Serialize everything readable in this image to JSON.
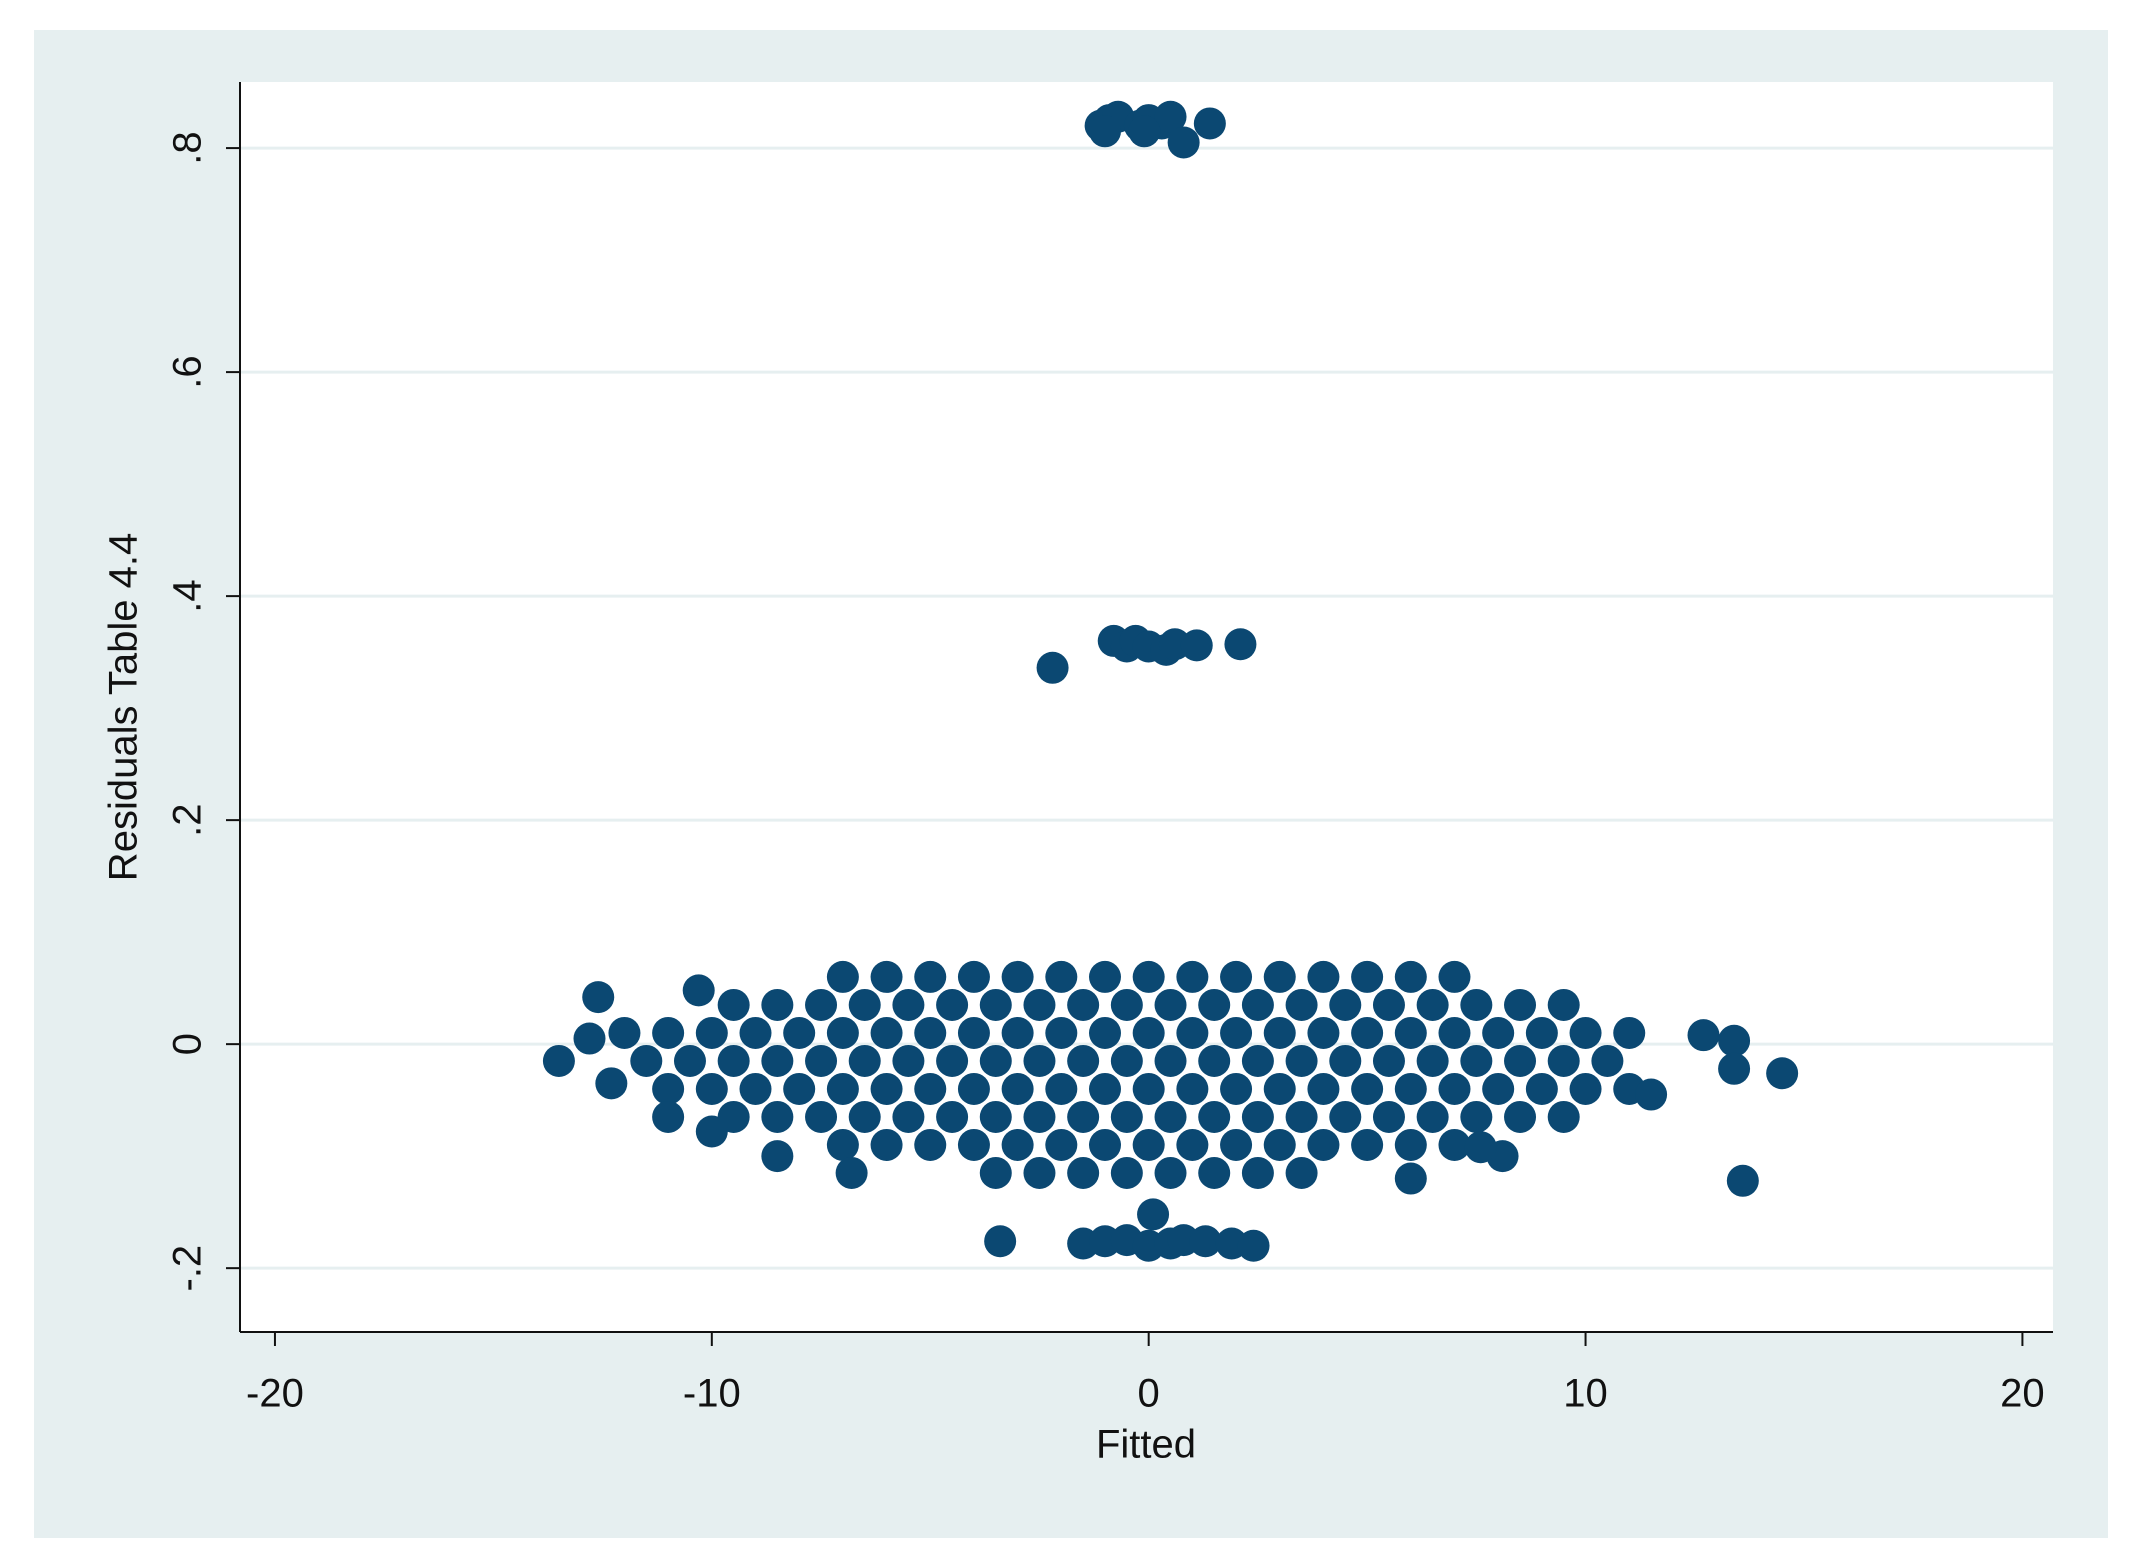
{
  "chart_data": {
    "type": "scatter",
    "xlabel": "Fitted",
    "ylabel": "Residuals Table 4.4",
    "color": "#0b4872",
    "grid": true,
    "xlim": [
      -20.8,
      20.7
    ],
    "ylim": [
      -0.257,
      0.859
    ],
    "xticks": [
      -20,
      -10,
      0,
      10,
      20
    ],
    "yticks": [
      {
        "value": -0.2,
        "label": "-.2"
      },
      0,
      {
        "value": 0.2,
        "label": ".2"
      },
      {
        "value": 0.4,
        "label": ".4"
      },
      {
        "value": 0.6,
        "label": ".6"
      },
      {
        "value": 0.8,
        "label": ".8"
      }
    ],
    "x": [
      -7,
      -6,
      -5,
      -4,
      -3,
      -2,
      -1,
      0,
      1,
      2,
      3,
      4,
      5,
      6,
      7,
      -9.5,
      -8.5,
      -7.5,
      -6.5,
      -5.5,
      -4.5,
      -3.5,
      -2.5,
      -1.5,
      -0.5,
      0.5,
      1.5,
      2.5,
      3.5,
      4.5,
      5.5,
      6.5,
      7.5,
      8.5,
      9.5,
      -12,
      -11,
      -10,
      -9,
      -8,
      -7,
      -6,
      -5,
      -4,
      -3,
      -2,
      -1,
      0,
      1,
      2,
      3,
      4,
      5,
      6,
      7,
      8,
      9,
      10,
      11,
      -11.5,
      -10.5,
      -9.5,
      -8.5,
      -7.5,
      -6.5,
      -5.5,
      -4.5,
      -3.5,
      -2.5,
      -1.5,
      -0.5,
      0.5,
      1.5,
      2.5,
      3.5,
      4.5,
      5.5,
      6.5,
      7.5,
      8.5,
      9.5,
      10.5,
      -11,
      -10,
      -9,
      -8,
      -7,
      -6,
      -5,
      -4,
      -3,
      -2,
      -1,
      0,
      1,
      2,
      3,
      4,
      5,
      6,
      7,
      8,
      9,
      10,
      11,
      -9.5,
      -8.5,
      -7.5,
      -6.5,
      -5.5,
      -4.5,
      -3.5,
      -2.5,
      -1.5,
      -0.5,
      0.5,
      1.5,
      2.5,
      3.5,
      4.5,
      5.5,
      6.5,
      7.5,
      8.5,
      9.5,
      -7,
      -6,
      -5,
      -4,
      -3,
      -2,
      -1,
      0,
      1,
      2,
      3,
      4,
      5,
      6,
      7,
      -3.5,
      -2.5,
      -1.5,
      -0.5,
      0.5,
      1.5,
      2.5,
      3.5,
      -1.1,
      -0.9,
      -0.7,
      -0.2,
      0,
      0.3,
      0.5,
      0.8,
      1.4,
      -1,
      -0.1,
      -0.8,
      -0.5,
      -0.3,
      0,
      0.4,
      0.6,
      1.1,
      2.1,
      -2.2,
      -3.4,
      -1.5,
      -1,
      -0.5,
      0,
      0.5,
      0.8,
      1.3,
      1.9,
      2.4,
      0.1,
      -13.5,
      -12.6,
      -12.8,
      -12.3,
      13.4,
      12.7,
      14.5,
      13.6,
      13.4,
      11.5,
      8.1,
      7.6,
      -10,
      -8.5,
      -6.8,
      6,
      -10.3,
      -11
    ],
    "values": [
      0.06,
      0.06,
      0.06,
      0.06,
      0.06,
      0.06,
      0.06,
      0.06,
      0.06,
      0.06,
      0.06,
      0.06,
      0.06,
      0.06,
      0.06,
      0.035,
      0.035,
      0.035,
      0.035,
      0.035,
      0.035,
      0.035,
      0.035,
      0.035,
      0.035,
      0.035,
      0.035,
      0.035,
      0.035,
      0.035,
      0.035,
      0.035,
      0.035,
      0.035,
      0.035,
      0.01,
      0.01,
      0.01,
      0.01,
      0.01,
      0.01,
      0.01,
      0.01,
      0.01,
      0.01,
      0.01,
      0.01,
      0.01,
      0.01,
      0.01,
      0.01,
      0.01,
      0.01,
      0.01,
      0.01,
      0.01,
      0.01,
      0.01,
      0.01,
      -0.015,
      -0.015,
      -0.015,
      -0.015,
      -0.015,
      -0.015,
      -0.015,
      -0.015,
      -0.015,
      -0.015,
      -0.015,
      -0.015,
      -0.015,
      -0.015,
      -0.015,
      -0.015,
      -0.015,
      -0.015,
      -0.015,
      -0.015,
      -0.015,
      -0.015,
      -0.015,
      -0.04,
      -0.04,
      -0.04,
      -0.04,
      -0.04,
      -0.04,
      -0.04,
      -0.04,
      -0.04,
      -0.04,
      -0.04,
      -0.04,
      -0.04,
      -0.04,
      -0.04,
      -0.04,
      -0.04,
      -0.04,
      -0.04,
      -0.04,
      -0.04,
      -0.04,
      -0.04,
      -0.065,
      -0.065,
      -0.065,
      -0.065,
      -0.065,
      -0.065,
      -0.065,
      -0.065,
      -0.065,
      -0.065,
      -0.065,
      -0.065,
      -0.065,
      -0.065,
      -0.065,
      -0.065,
      -0.065,
      -0.065,
      -0.065,
      -0.065,
      -0.09,
      -0.09,
      -0.09,
      -0.09,
      -0.09,
      -0.09,
      -0.09,
      -0.09,
      -0.09,
      -0.09,
      -0.09,
      -0.09,
      -0.09,
      -0.09,
      -0.09,
      -0.115,
      -0.115,
      -0.115,
      -0.115,
      -0.115,
      -0.115,
      -0.115,
      -0.115,
      0.82,
      0.825,
      0.828,
      0.82,
      0.825,
      0.822,
      0.828,
      0.805,
      0.822,
      0.815,
      0.815,
      0.36,
      0.355,
      0.36,
      0.355,
      0.352,
      0.357,
      0.356,
      0.357,
      0.336,
      -0.176,
      -0.178,
      -0.176,
      -0.175,
      -0.18,
      -0.178,
      -0.175,
      -0.176,
      -0.178,
      -0.18,
      -0.152,
      -0.015,
      0.042,
      0.005,
      -0.035,
      0.003,
      0.008,
      -0.026,
      -0.122,
      -0.022,
      -0.045,
      -0.1,
      -0.092,
      -0.078,
      -0.1,
      -0.115,
      -0.12,
      0.048,
      -0.065
    ]
  }
}
